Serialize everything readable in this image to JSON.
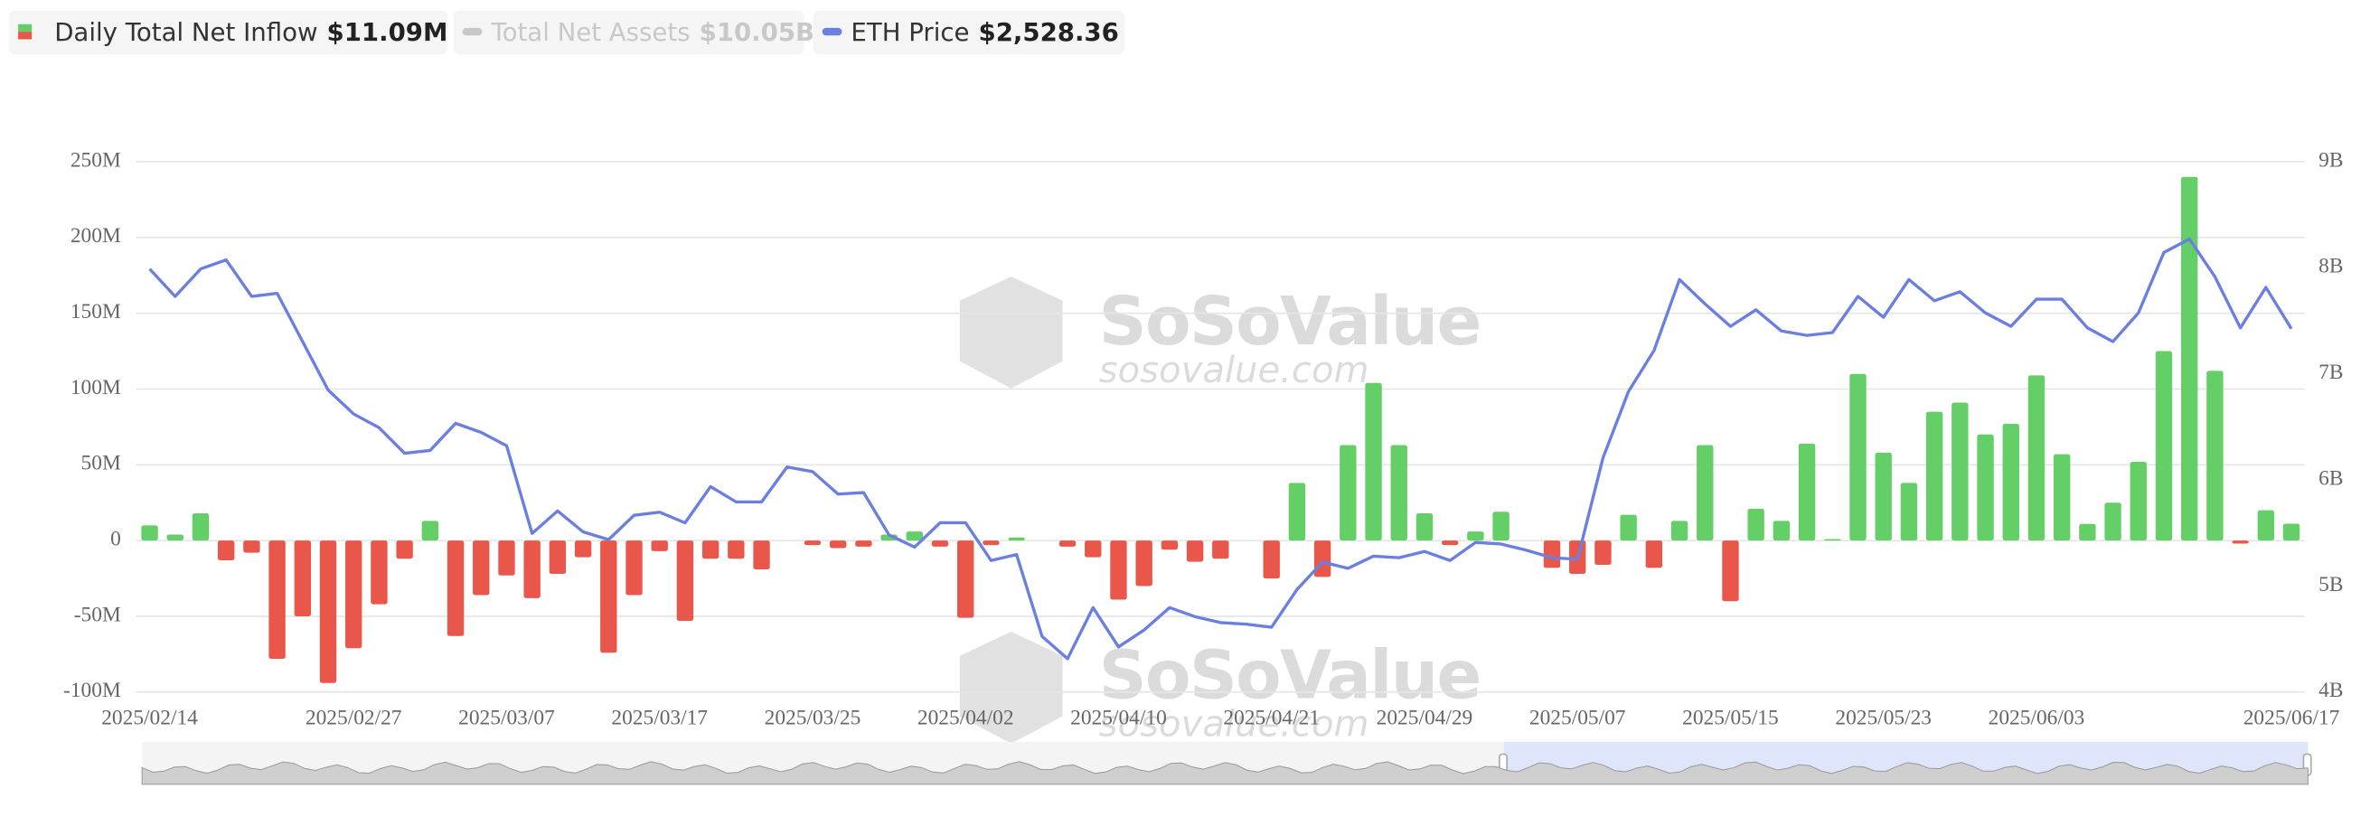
{
  "chart_data": {
    "type": "bar",
    "categories": [
      "2025/02/14",
      null,
      null,
      null,
      null,
      null,
      null,
      null,
      "2025/02/27",
      null,
      null,
      null,
      null,
      null,
      "2025/03/07",
      null,
      null,
      null,
      null,
      null,
      "2025/03/17",
      null,
      null,
      null,
      null,
      null,
      "2025/03/25",
      null,
      null,
      null,
      null,
      null,
      "2025/04/02",
      null,
      null,
      null,
      null,
      null,
      "2025/04/10",
      null,
      null,
      null,
      null,
      null,
      "2025/04/21",
      null,
      null,
      null,
      null,
      null,
      "2025/04/29",
      null,
      null,
      null,
      null,
      null,
      "2025/05/07",
      null,
      null,
      null,
      null,
      null,
      "2025/05/15",
      null,
      null,
      null,
      null,
      null,
      "2025/05/23",
      null,
      null,
      null,
      null,
      null,
      "2025/06/03",
      null,
      null,
      null,
      null,
      null,
      null,
      null,
      null,
      null,
      "2025/06/17"
    ],
    "series": [
      {
        "name": "Daily Total Net Inflow",
        "legend_value": "$11.09M",
        "type": "bar",
        "positive_color": "#63cf66",
        "negative_color": "#e9574b",
        "values": [
          10,
          4,
          18,
          -13,
          -8,
          -78,
          -50,
          -94,
          -71,
          -42,
          -12,
          13,
          -63,
          -36,
          -23,
          -38,
          -22,
          -11,
          -74,
          -36,
          -7,
          -53,
          -12,
          -12,
          -19,
          0,
          -3,
          -5,
          -4,
          4,
          6,
          -4,
          -51,
          -3,
          2,
          0,
          -4,
          -11,
          -39,
          -30,
          -6,
          -14,
          -12,
          0,
          -25,
          38,
          -24,
          63,
          104,
          63,
          18,
          -3,
          6,
          19,
          0,
          -18,
          -22,
          -16,
          17,
          -18,
          13,
          63,
          -40,
          21,
          13,
          64,
          1,
          110,
          58,
          38,
          85,
          91,
          70,
          77,
          109,
          57,
          11,
          25,
          52,
          125,
          240,
          112,
          -2,
          20,
          11.09
        ]
      },
      {
        "name": "Total Net Assets",
        "legend_value": "$10.05B",
        "axis": "y2",
        "visible": false,
        "color": "#c8c8c8"
      },
      {
        "name": "ETH Price",
        "legend_value": "$2,528.36",
        "type": "line",
        "axis": "y3",
        "color": "#6a7fe0",
        "values": [
          2720,
          2632,
          2720,
          2749,
          2632,
          2642,
          2487,
          2332,
          2255,
          2211,
          2129,
          2138,
          2225,
          2196,
          2153,
          1872,
          1944,
          1877,
          1852,
          1930,
          1940,
          1906,
          2022,
          1973,
          1973,
          2085,
          2070,
          1998,
          2003,
          1867,
          1828,
          1906,
          1906,
          1785,
          1804,
          1542,
          1470,
          1634,
          1508,
          1562,
          1634,
          1605,
          1586,
          1581,
          1571,
          1692,
          1780,
          1760,
          1799,
          1794,
          1814,
          1785,
          1843,
          1838,
          1818,
          1794,
          1789,
          2114,
          2327,
          2458,
          2686,
          2608,
          2536,
          2589,
          2521,
          2507,
          2516,
          2632,
          2565,
          2686,
          2618,
          2647,
          2579,
          2536,
          2623,
          2623,
          2531,
          2487,
          2579,
          2773,
          2816,
          2695,
          2531,
          2661,
          2528.36
        ]
      }
    ],
    "ylim": [
      -100,
      250
    ],
    "yticks": [
      {
        "value": -100,
        "label": "-100M"
      },
      {
        "value": -50,
        "label": "-50M"
      },
      0,
      {
        "value": 50,
        "label": "50M"
      },
      {
        "value": 100,
        "label": "100M"
      },
      {
        "value": 150,
        "label": "150M"
      },
      {
        "value": 200,
        "label": "200M"
      },
      {
        "value": 250,
        "label": "250M"
      }
    ],
    "y2lim": [
      4,
      9
    ],
    "y2ticks": [
      {
        "value": 4,
        "label": "4B"
      },
      {
        "value": 5,
        "label": "5B"
      },
      {
        "value": 6,
        "label": "6B"
      },
      {
        "value": 7,
        "label": "7B"
      },
      {
        "value": 8,
        "label": "8B"
      },
      {
        "value": 9,
        "label": "9B"
      }
    ],
    "y3lim": [
      1363,
      3064
    ],
    "grid": true,
    "watermark": {
      "brand": "SoSoValue",
      "site": "sosovalue.com"
    }
  }
}
